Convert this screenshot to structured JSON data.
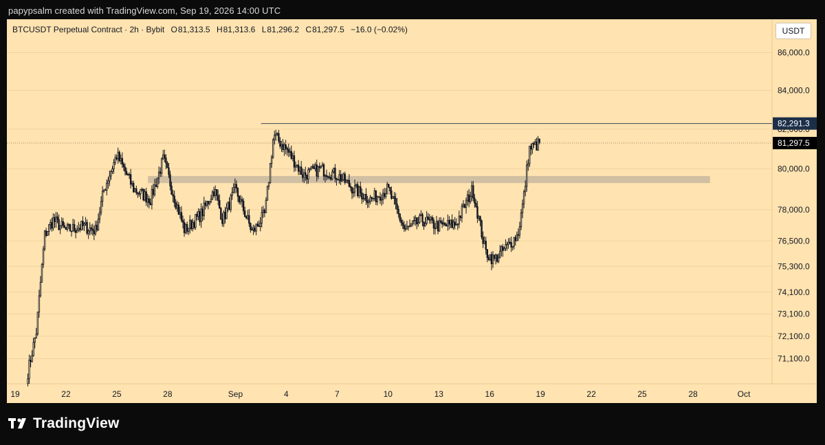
{
  "header": {
    "credit": "papypsalm created with TradingView.com, Sep 19, 2026 14:00 UTC"
  },
  "legend": {
    "symbol": "BTCUSDT Perpetual Contract · 2h · Bybit",
    "open_key": "O",
    "open": "81,313.5",
    "high_key": "H",
    "high": "81,313.6",
    "low_key": "L",
    "low": "81,296.2",
    "close_key": "C",
    "close": "81,297.5",
    "change": "−16.0 (−0.02%)"
  },
  "currency_button": "USDT",
  "footer": {
    "brand": "TradingView"
  },
  "colors": {
    "background": "#ffe3b0",
    "candles": "#131722",
    "resistance_line": "#3a4a5a",
    "resistance_label_bg": "#1c2f48",
    "price_label_bg": "#000000",
    "zone": "#c8b8a0",
    "grid": "#f0d49e"
  },
  "chart_data": {
    "type": "candlestick",
    "title": "BTCUSDT Perpetual Contract · 2h · Bybit",
    "x_tick_labels": [
      "19",
      "22",
      "25",
      "28",
      "Sep",
      "4",
      "7",
      "10",
      "13",
      "16",
      "19",
      "22",
      "25",
      "28",
      "Oct"
    ],
    "x_range": [
      "Aug 19",
      "Oct 1"
    ],
    "y_axis_scale": "log",
    "y_tick_labels": [
      "86,000.0",
      "84,000.0",
      "82,000.0",
      "80,000.0",
      "78,000.0",
      "76,500.0",
      "75,300.0",
      "74,100.0",
      "73,100.0",
      "72,100.0",
      "71,100.0"
    ],
    "y_tick_values": [
      86000,
      84000,
      82000,
      80000,
      78000,
      76500,
      75300,
      74100,
      73100,
      72100,
      71100
    ],
    "ylim": [
      70000,
      87800
    ],
    "grid": true,
    "closes_approx": [
      {
        "date": "Aug 20",
        "close": 70500
      },
      {
        "date": "Aug 20",
        "close": 72300
      },
      {
        "date": "Aug 21",
        "close": 76800
      },
      {
        "date": "Aug 21",
        "close": 77500
      },
      {
        "date": "Aug 22",
        "close": 77000
      },
      {
        "date": "Aug 23",
        "close": 77200
      },
      {
        "date": "Aug 24",
        "close": 77000
      },
      {
        "date": "Aug 24",
        "close": 79000
      },
      {
        "date": "Aug 25",
        "close": 80700
      },
      {
        "date": "Aug 26",
        "close": 79000
      },
      {
        "date": "Aug 27",
        "close": 78500
      },
      {
        "date": "Aug 28",
        "close": 80500
      },
      {
        "date": "Aug 28",
        "close": 79000
      },
      {
        "date": "Aug 29",
        "close": 77000
      },
      {
        "date": "Aug 30",
        "close": 77800
      },
      {
        "date": "Aug 31",
        "close": 79000
      },
      {
        "date": "Aug 31",
        "close": 77500
      },
      {
        "date": "Sep 1",
        "close": 79000
      },
      {
        "date": "Sep 2",
        "close": 76900
      },
      {
        "date": "Sep 3",
        "close": 77800
      },
      {
        "date": "Sep 3",
        "close": 81700
      },
      {
        "date": "Sep 4",
        "close": 81000
      },
      {
        "date": "Sep 5",
        "close": 79700
      },
      {
        "date": "Sep 6",
        "close": 80000
      },
      {
        "date": "Sep 7",
        "close": 79700
      },
      {
        "date": "Sep 8",
        "close": 79000
      },
      {
        "date": "Sep 9",
        "close": 78500
      },
      {
        "date": "Sep 10",
        "close": 79000
      },
      {
        "date": "Sep 11",
        "close": 77000
      },
      {
        "date": "Sep 12",
        "close": 77500
      },
      {
        "date": "Sep 13",
        "close": 77200
      },
      {
        "date": "Sep 14",
        "close": 77300
      },
      {
        "date": "Sep 15",
        "close": 79000
      },
      {
        "date": "Sep 16",
        "close": 76000
      },
      {
        "date": "Sep 16",
        "close": 75600
      },
      {
        "date": "Sep 17",
        "close": 76200
      },
      {
        "date": "Sep 18",
        "close": 76800
      },
      {
        "date": "Sep 18",
        "close": 78500
      },
      {
        "date": "Sep 18",
        "close": 81000
      },
      {
        "date": "Sep 19",
        "close": 81297.5
      }
    ],
    "last_price": 81297.5,
    "last_price_label": "81,297.5",
    "resistance_level": 82291.3,
    "resistance_label": "82,291.3",
    "zone": {
      "from_date": "Aug 27",
      "to_date": "Sep 29",
      "low": 79300,
      "high": 79650
    }
  }
}
